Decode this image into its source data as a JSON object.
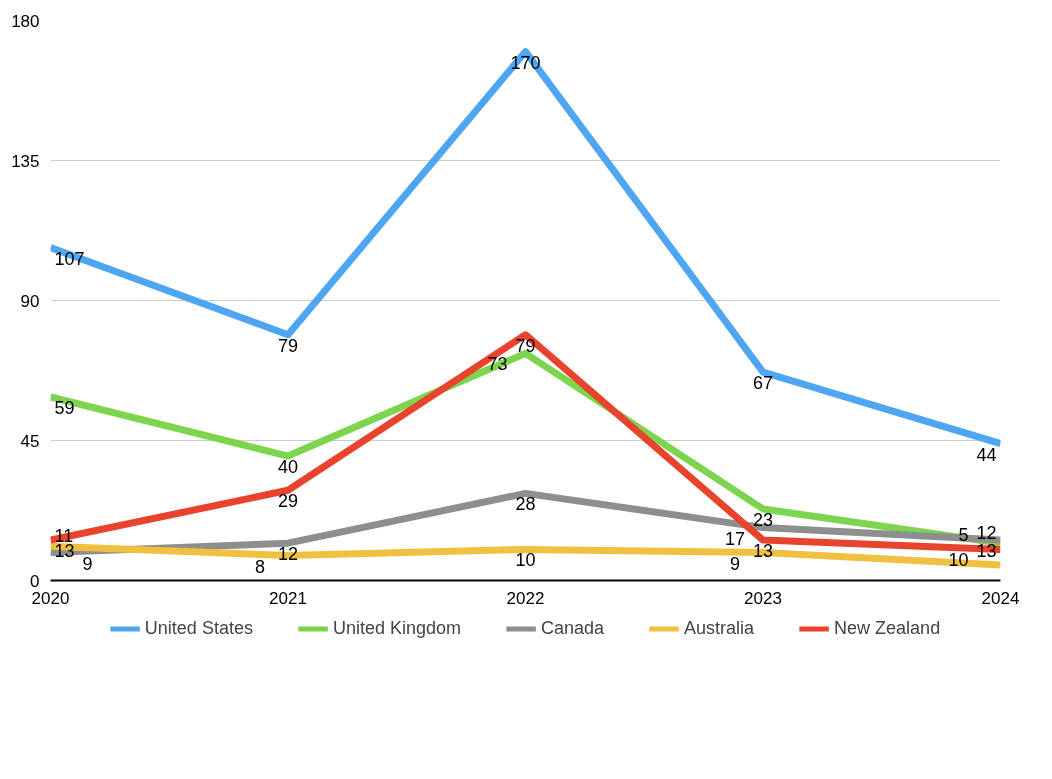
{
  "chart_data": {
    "type": "line",
    "x": [
      2020,
      2021,
      2022,
      2023,
      2024
    ],
    "xlim": [
      2020,
      2024
    ],
    "xticks": [
      2020,
      2021,
      2022,
      2023,
      2024
    ],
    "ylim": [
      0,
      180
    ],
    "yticks": [
      0,
      45,
      90,
      135,
      180
    ],
    "grid": "y",
    "legend": "bottom",
    "data_labels": true,
    "line_style": "solid",
    "marker": "none",
    "series": [
      {
        "name": "United States",
        "color": "#4ea6f2",
        "values": [
          107,
          79,
          170,
          67,
          44
        ]
      },
      {
        "name": "United Kingdom",
        "color": "#7dd44f",
        "values": [
          59,
          40,
          73,
          23,
          12
        ]
      },
      {
        "name": "Canada",
        "color": "#8e8e8e",
        "values": [
          9,
          12,
          28,
          17,
          13
        ]
      },
      {
        "name": "Australia",
        "color": "#f0c040",
        "values": [
          11,
          8,
          10,
          9,
          5
        ]
      },
      {
        "name": "New Zealand",
        "color": "#e8432c",
        "values": [
          13,
          29,
          79,
          13,
          10
        ]
      }
    ]
  }
}
